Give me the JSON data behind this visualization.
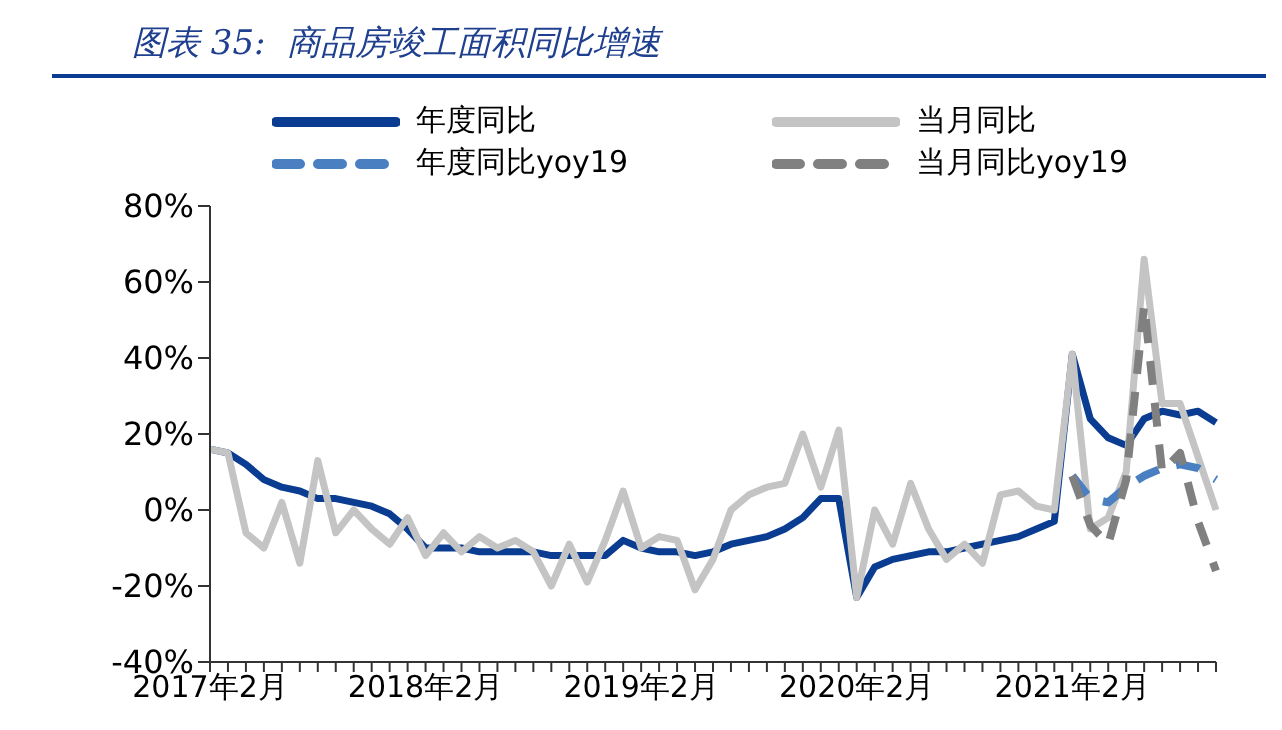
{
  "chart_data": {
    "type": "line",
    "title": "图表 35:  商品房竣工面积同比增速",
    "categories": [
      "2017年2月",
      null,
      null,
      null,
      null,
      null,
      null,
      null,
      null,
      null,
      null,
      null,
      "2018年2月",
      null,
      null,
      null,
      null,
      null,
      null,
      null,
      null,
      null,
      null,
      null,
      "2019年2月",
      null,
      null,
      null,
      null,
      null,
      null,
      null,
      null,
      null,
      null,
      null,
      "2020年2月",
      null,
      null,
      null,
      null,
      null,
      null,
      null,
      null,
      null,
      null,
      null,
      "2021年2月",
      null,
      null,
      null,
      null,
      null,
      null,
      null,
      null
    ],
    "series": [
      {
        "name": "年度同比",
        "color": "#0a3d91",
        "line_style": "solid",
        "values": [
          16,
          15,
          12,
          8,
          6,
          5,
          3,
          3,
          2,
          1,
          -1,
          -5,
          -10,
          -10,
          -10,
          -11,
          -11,
          -11,
          -11,
          -12,
          -12,
          -12,
          -12,
          -8,
          -10,
          -11,
          -11,
          -12,
          -11,
          -9,
          -8,
          -7,
          -5,
          -2,
          3,
          3,
          -23,
          -15,
          -13,
          -12,
          -11,
          -11,
          -10,
          -9,
          -8,
          -7,
          -5,
          -3,
          41,
          24,
          19,
          17,
          24,
          26,
          25,
          26,
          23
        ]
      },
      {
        "name": "当月同比",
        "color": "#c4c4c4",
        "line_style": "solid",
        "values": [
          16,
          15,
          -6,
          -10,
          2,
          -14,
          13,
          -6,
          0,
          -5,
          -9,
          -2,
          -12,
          -6,
          -11,
          -7,
          -10,
          -8,
          -11,
          -20,
          -9,
          -19,
          -8,
          5,
          -10,
          -7,
          -8,
          -21,
          -13,
          0,
          4,
          6,
          7,
          20,
          6,
          21,
          -23,
          0,
          -9,
          7,
          -5,
          -13,
          -9,
          -14,
          4,
          5,
          1,
          0,
          41,
          -5,
          -2,
          10,
          66,
          28,
          28,
          14,
          0
        ]
      },
      {
        "name": "年度同比yoy19",
        "color": "#4a7fc1",
        "line_style": "dashed",
        "values": [
          null,
          null,
          null,
          null,
          null,
          null,
          null,
          null,
          null,
          null,
          null,
          null,
          null,
          null,
          null,
          null,
          null,
          null,
          null,
          null,
          null,
          null,
          null,
          null,
          null,
          null,
          null,
          null,
          null,
          null,
          null,
          null,
          null,
          null,
          null,
          null,
          null,
          null,
          null,
          null,
          null,
          null,
          null,
          null,
          null,
          null,
          null,
          null,
          9,
          3,
          2,
          6,
          9,
          11,
          12,
          11,
          8
        ]
      },
      {
        "name": "当月同比yoy19",
        "color": "#808080",
        "line_style": "dashed",
        "values": [
          null,
          null,
          null,
          null,
          null,
          null,
          null,
          null,
          null,
          null,
          null,
          null,
          null,
          null,
          null,
          null,
          null,
          null,
          null,
          null,
          null,
          null,
          null,
          null,
          null,
          null,
          null,
          null,
          null,
          null,
          null,
          null,
          null,
          null,
          null,
          null,
          null,
          null,
          null,
          null,
          null,
          null,
          null,
          null,
          null,
          null,
          null,
          null,
          9,
          -4,
          -9,
          8,
          54,
          10,
          15,
          -3,
          -16
        ]
      }
    ],
    "ylim": [
      -40,
      80
    ],
    "yticks": [
      {
        "value": -40,
        "label": "-40%"
      },
      {
        "value": -20,
        "label": "-20%"
      },
      {
        "value": 0,
        "label": "0%"
      },
      {
        "value": 20,
        "label": "20%"
      },
      {
        "value": 40,
        "label": "40%"
      },
      {
        "value": 60,
        "label": "60%"
      },
      {
        "value": 80,
        "label": "80%"
      }
    ],
    "legend": "top",
    "grid": false,
    "marker": "none"
  }
}
